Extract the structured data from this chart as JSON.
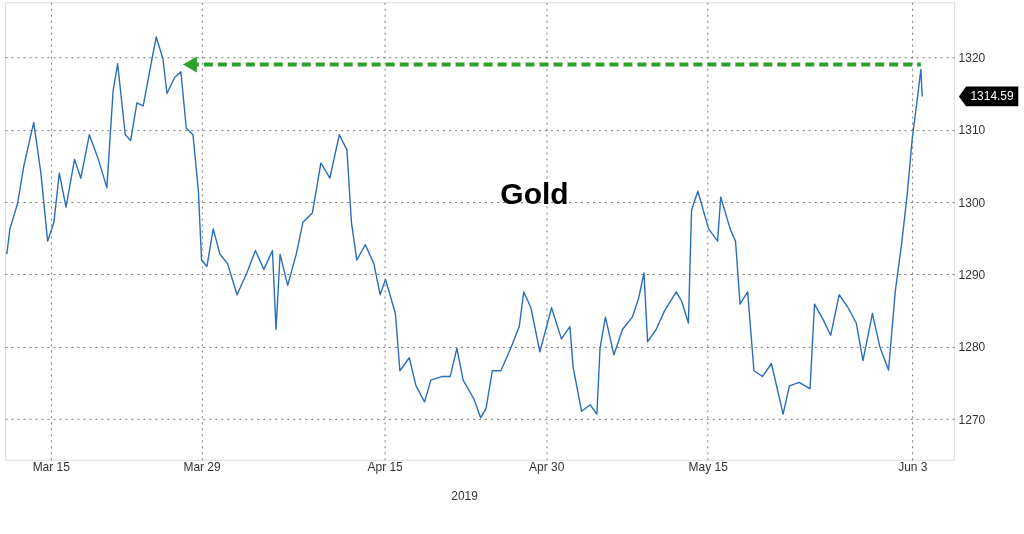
{
  "chart_data": {
    "type": "line",
    "title": "Gold",
    "xlabel": "2019",
    "xlim": [
      "2019-03-10T18:00",
      "2019-06-06T21:00"
    ],
    "xticks": [
      {
        "value": "2019-03-15",
        "label": "Mar 15"
      },
      {
        "value": "2019-03-29",
        "label": "Mar 29"
      },
      {
        "value": "2019-04-15",
        "label": "Apr 15"
      },
      {
        "value": "2019-04-30",
        "label": "Apr 30"
      },
      {
        "value": "2019-05-15",
        "label": "May 15"
      },
      {
        "value": "2019-06-03",
        "label": "Jun 3"
      }
    ],
    "ylim": [
      1264.4,
      1327.6
    ],
    "yticks": [
      1270,
      1280,
      1290,
      1300,
      1310,
      1320
    ],
    "grid": true,
    "annotations": [
      "1314.59"
    ],
    "series": [
      {
        "color": "#2a6ebb",
        "marker": "none",
        "line_style": "solid",
        "x": [
          "2019-03-10T22:00",
          "2019-03-11T05:00",
          "2019-03-11T22:00",
          "2019-03-12T12:00",
          "2019-03-13T10:00",
          "2019-03-14T02:00",
          "2019-03-14T17:00",
          "2019-03-15T07:00",
          "2019-03-15T19:00",
          "2019-03-16T10:00",
          "2019-03-17T05:00",
          "2019-03-17T19:00",
          "2019-03-18T14:00",
          "2019-03-19T10:00",
          "2019-03-20T05:00",
          "2019-03-20T19:00",
          "2019-03-21T05:00",
          "2019-03-21T22:00",
          "2019-03-22T10:00",
          "2019-03-23T00:00",
          "2019-03-23T14:00",
          "2019-03-24T07:00",
          "2019-03-24T19:00",
          "2019-03-25T10:00",
          "2019-03-25T19:00",
          "2019-03-26T12:00",
          "2019-03-27T02:00",
          "2019-03-27T14:00",
          "2019-03-28T05:00",
          "2019-03-28T17:00",
          "2019-03-29T00:00",
          "2019-03-29T12:00",
          "2019-03-30T02:00",
          "2019-03-30T17:00",
          "2019-03-31T10:00",
          "2019-04-01T07:00",
          "2019-04-02T05:00",
          "2019-04-03T00:00",
          "2019-04-03T19:00",
          "2019-04-04T14:00",
          "2019-04-04T22:00",
          "2019-04-05T07:00",
          "2019-04-06T00:00",
          "2019-04-06T19:00",
          "2019-04-07T10:00",
          "2019-04-08T07:00",
          "2019-04-09T02:00",
          "2019-04-09T22:00",
          "2019-04-10T19:00",
          "2019-04-11T12:00",
          "2019-04-11T22:00",
          "2019-04-12T10:00",
          "2019-04-13T05:00",
          "2019-04-14T00:00",
          "2019-04-14T14:00",
          "2019-04-15T02:00",
          "2019-04-16T00:00",
          "2019-04-16T10:00",
          "2019-04-17T07:00",
          "2019-04-17T22:00",
          "2019-04-18T17:00",
          "2019-04-19T07:00",
          "2019-04-20T07:00",
          "2019-04-21T02:00",
          "2019-04-21T17:00",
          "2019-04-22T07:00",
          "2019-04-23T07:00",
          "2019-04-23T22:00",
          "2019-04-24T10:00",
          "2019-04-25T00:00",
          "2019-04-25T19:00",
          "2019-04-26T17:00",
          "2019-04-27T12:00",
          "2019-04-27T22:00",
          "2019-04-28T14:00",
          "2019-04-29T10:00",
          "2019-04-30T12:00",
          "2019-05-01T10:00",
          "2019-05-02T05:00",
          "2019-05-02T12:00",
          "2019-05-03T07:00",
          "2019-05-04T02:00",
          "2019-05-04T17:00",
          "2019-05-05T00:00",
          "2019-05-05T12:00",
          "2019-05-06T07:00",
          "2019-05-07T02:00",
          "2019-05-08T00:00",
          "2019-05-08T14:00",
          "2019-05-09T02:00",
          "2019-05-09T10:00",
          "2019-05-10T05:00",
          "2019-05-11T00:00",
          "2019-05-12T02:00",
          "2019-05-12T14:00",
          "2019-05-13T05:00",
          "2019-05-13T12:00",
          "2019-05-14T02:00",
          "2019-05-15T02:00",
          "2019-05-15T22:00",
          "2019-05-16T05:00",
          "2019-05-17T02:00",
          "2019-05-17T14:00",
          "2019-05-18T00:00",
          "2019-05-18T17:00",
          "2019-05-19T07:00",
          "2019-05-20T02:00",
          "2019-05-20T22:00",
          "2019-05-22T00:00",
          "2019-05-22T14:00",
          "2019-05-23T12:00",
          "2019-05-24T12:00",
          "2019-05-24T22:00",
          "2019-05-25T17:00",
          "2019-05-26T10:00",
          "2019-05-27T05:00",
          "2019-05-28T00:00",
          "2019-05-28T19:00",
          "2019-05-29T10:00",
          "2019-05-30T07:00",
          "2019-05-31T00:00",
          "2019-05-31T19:00",
          "2019-06-01T10:00",
          "2019-06-02T00:00",
          "2019-06-02T12:00",
          "2019-06-03T00:00",
          "2019-06-03T10:00",
          "2019-06-03T19:00",
          "2019-06-03T22:00"
        ],
        "values": [
          1292.8,
          1296.3,
          1299.8,
          1305,
          1311,
          1304,
          1294.6,
          1297.2,
          1304,
          1299.3,
          1305.9,
          1303.3,
          1309.3,
          1305.9,
          1302,
          1315.4,
          1319.1,
          1309.3,
          1308.5,
          1313.7,
          1313.3,
          1318.9,
          1322.8,
          1319.8,
          1315,
          1317.2,
          1318,
          1310.2,
          1309.3,
          1301.5,
          1292,
          1291.1,
          1296.3,
          1292.8,
          1291.5,
          1287.2,
          1290.2,
          1293.3,
          1290.7,
          1293.3,
          1282.4,
          1292.8,
          1288.5,
          1292.8,
          1297.2,
          1298.5,
          1305.4,
          1303.3,
          1309.3,
          1307.2,
          1297.2,
          1292,
          1294.1,
          1291.5,
          1287.2,
          1289.3,
          1284.6,
          1276.7,
          1278.5,
          1274.6,
          1272.4,
          1275.4,
          1275.9,
          1275.9,
          1279.8,
          1275.4,
          1272.8,
          1270.2,
          1271.5,
          1276.7,
          1276.7,
          1279.8,
          1282.8,
          1287.6,
          1285.4,
          1279.3,
          1285.4,
          1281.1,
          1282.8,
          1277.2,
          1271.1,
          1272,
          1270.7,
          1279.8,
          1284.1,
          1278.9,
          1282.4,
          1284.1,
          1286.7,
          1290.2,
          1280.7,
          1282.4,
          1285,
          1287.6,
          1286.3,
          1283.3,
          1298.9,
          1301.5,
          1296.3,
          1294.6,
          1300.7,
          1296.3,
          1294.6,
          1285.9,
          1287.6,
          1276.7,
          1275.9,
          1277.7,
          1270.7,
          1274.6,
          1275.1,
          1274.2,
          1285.9,
          1283.8,
          1281.6,
          1287.2,
          1285.5,
          1283.3,
          1278.1,
          1284.6,
          1279.9,
          1276.8,
          1287.7,
          1294.2,
          1300.7,
          1308.9,
          1313.7,
          1318.3,
          1314.59
        ]
      },
      {
        "type": "line",
        "color": "#2ca02c",
        "line_style": "dashed",
        "marker": "triangle",
        "x": [
          "2019-03-27T22:00",
          "2019-06-03T19:00"
        ],
        "values": [
          1319,
          1319
        ]
      }
    ]
  }
}
